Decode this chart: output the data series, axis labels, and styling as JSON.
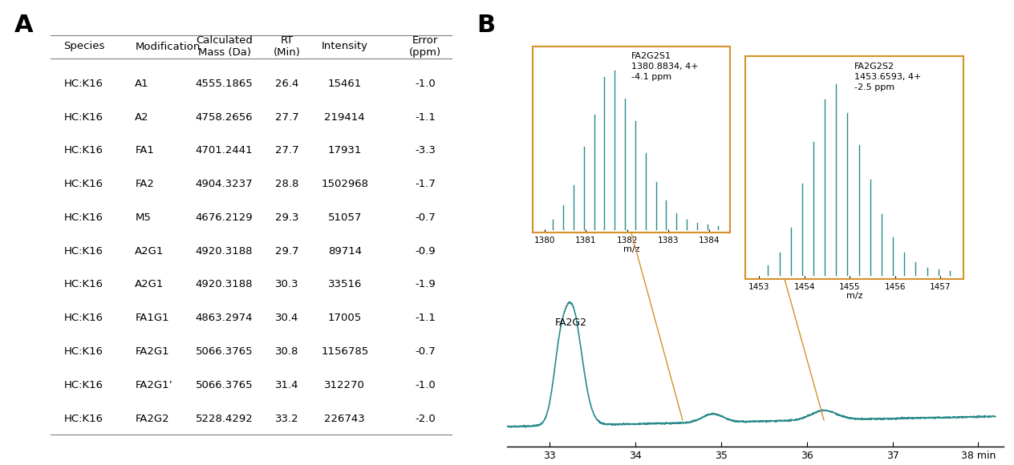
{
  "table_data": {
    "headers": [
      "Species",
      "Modification",
      "Calculated\nMass (Da)",
      "RT\n(Min)",
      "Intensity",
      "Error\n(ppm)"
    ],
    "rows": [
      [
        "HC:K16",
        "A1",
        "4555.1865",
        "26.4",
        "15461",
        "-1.0"
      ],
      [
        "HC:K16",
        "A2",
        "4758.2656",
        "27.7",
        "219414",
        "-1.1"
      ],
      [
        "HC:K16",
        "FA1",
        "4701.2441",
        "27.7",
        "17931",
        "-3.3"
      ],
      [
        "HC:K16",
        "FA2",
        "4904.3237",
        "28.8",
        "1502968",
        "-1.7"
      ],
      [
        "HC:K16",
        "M5",
        "4676.2129",
        "29.3",
        "51057",
        "-0.7"
      ],
      [
        "HC:K16",
        "A2G1",
        "4920.3188",
        "29.7",
        "89714",
        "-0.9"
      ],
      [
        "HC:K16",
        "A2G1",
        "4920.3188",
        "30.3",
        "33516",
        "-1.9"
      ],
      [
        "HC:K16",
        "FA1G1",
        "4863.2974",
        "30.4",
        "17005",
        "-1.1"
      ],
      [
        "HC:K16",
        "FA2G1",
        "5066.3765",
        "30.8",
        "1156785",
        "-0.7"
      ],
      [
        "HC:K16",
        "FA2G1’",
        "5066.3765",
        "31.4",
        "312270",
        "-1.0"
      ],
      [
        "HC:K16",
        "FA2G2",
        "5228.4292",
        "33.2",
        "226743",
        "-2.0"
      ]
    ]
  },
  "teal_color": "#2a8a8c",
  "orange_color": "#d4922a",
  "background_color": "#ffffff",
  "panel_label_fontsize": 22,
  "table_fontsize": 9.5,
  "header_fontsize": 9.5,
  "chromatogram_xlabel": "min",
  "chromatogram_xticks": [
    33,
    34,
    35,
    36,
    37,
    38
  ],
  "inset1_label": "FA2G2S1\n1380.8834, 4+\n-4.1 ppm",
  "inset1_xticks": [
    1380,
    1381,
    1382,
    1383,
    1384
  ],
  "inset1_xlabel": "m/z",
  "inset2_label": "FA2G2S2\n1453.6593, 4+\n-2.5 ppm",
  "inset2_xticks": [
    1453,
    1454,
    1455,
    1456,
    1457
  ],
  "inset2_xlabel": "m/z",
  "fa2g2_label": "FA2G2"
}
